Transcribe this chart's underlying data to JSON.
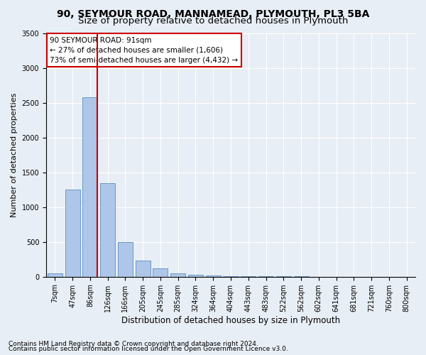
{
  "title1": "90, SEYMOUR ROAD, MANNAMEAD, PLYMOUTH, PL3 5BA",
  "title2": "Size of property relative to detached houses in Plymouth",
  "xlabel": "Distribution of detached houses by size in Plymouth",
  "ylabel": "Number of detached properties",
  "categories": [
    "7sqm",
    "47sqm",
    "86sqm",
    "126sqm",
    "166sqm",
    "205sqm",
    "245sqm",
    "285sqm",
    "324sqm",
    "364sqm",
    "404sqm",
    "443sqm",
    "483sqm",
    "522sqm",
    "562sqm",
    "602sqm",
    "641sqm",
    "681sqm",
    "721sqm",
    "760sqm",
    "800sqm"
  ],
  "values": [
    50,
    1250,
    2580,
    1340,
    500,
    235,
    115,
    50,
    30,
    20,
    10,
    10,
    5,
    5,
    5,
    2,
    2,
    2,
    1,
    1,
    1
  ],
  "bar_color": "#aec6e8",
  "bar_edgecolor": "#5a8fc0",
  "vline_x_index": 2,
  "vline_color": "#cc0000",
  "annotation_text": "90 SEYMOUR ROAD: 91sqm\n← 27% of detached houses are smaller (1,606)\n73% of semi-detached houses are larger (4,432) →",
  "annotation_box_edgecolor": "#cc0000",
  "annotation_box_facecolor": "#ffffff",
  "ylim": [
    0,
    3500
  ],
  "yticks": [
    0,
    500,
    1000,
    1500,
    2000,
    2500,
    3000,
    3500
  ],
  "footnote1": "Contains HM Land Registry data © Crown copyright and database right 2024.",
  "footnote2": "Contains public sector information licensed under the Open Government Licence v3.0.",
  "bg_color": "#e8eef5",
  "plot_bg_color": "#e8eef5",
  "title1_fontsize": 10,
  "title2_fontsize": 9.5,
  "xlabel_fontsize": 8.5,
  "ylabel_fontsize": 8,
  "tick_fontsize": 7,
  "annotation_fontsize": 7.5,
  "footnote_fontsize": 6.5
}
